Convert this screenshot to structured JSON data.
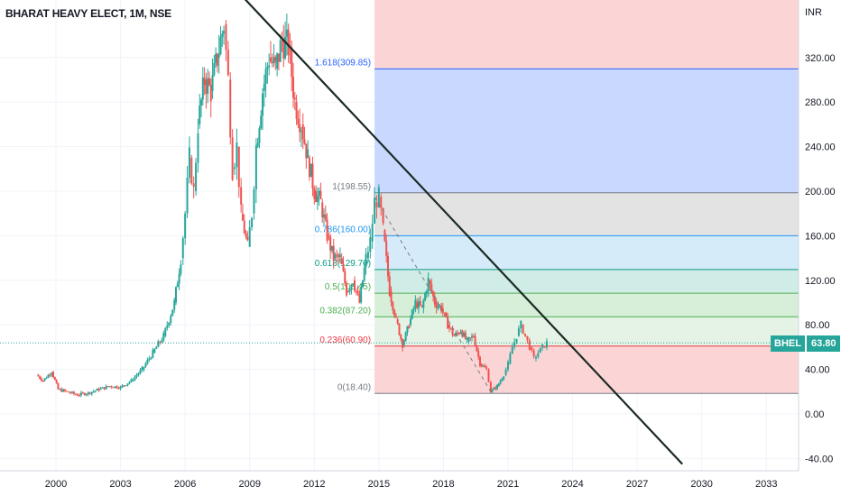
{
  "header": {
    "title": "BHARAT HEAVY ELECT, 1M, NSE",
    "unit": "INR"
  },
  "price_badge": {
    "symbol": "BHEL",
    "price": "63.80"
  },
  "colors": {
    "up": "#26a69a",
    "down": "#ef5350",
    "trendline": "#1b2a23",
    "current_price_line": "#26a69a"
  },
  "chart_data": {
    "type": "candlestick",
    "interval": "monthly",
    "x_ticks": [
      "2000",
      "2003",
      "2006",
      "2009",
      "2012",
      "2015",
      "2018",
      "2021",
      "2024",
      "2027",
      "2030",
      "2033"
    ],
    "y_ticks": [
      "-40.00",
      "0.00",
      "40.00",
      "80.00",
      "120.00",
      "160.00",
      "200.00",
      "240.00",
      "280.00",
      "320.00"
    ],
    "ylim": [
      -50,
      360
    ],
    "xlim": [
      1997.4,
      2034.5
    ],
    "current_price": 63.8,
    "series": [
      {
        "ohlc_path": [
          [
            1999.1,
            35
          ],
          [
            1999.4,
            30
          ],
          [
            1999.8,
            38
          ],
          [
            2000.1,
            22
          ],
          [
            2000.5,
            20
          ],
          [
            2001.0,
            17
          ],
          [
            2001.5,
            19
          ],
          [
            2002.0,
            22
          ],
          [
            2002.5,
            25
          ],
          [
            2003.0,
            24
          ],
          [
            2003.5,
            30
          ],
          [
            2004.0,
            40
          ],
          [
            2004.5,
            55
          ],
          [
            2005.0,
            70
          ],
          [
            2005.5,
            100
          ],
          [
            2005.8,
            140
          ],
          [
            2006.0,
            180
          ],
          [
            2006.2,
            230
          ],
          [
            2006.4,
            200
          ],
          [
            2006.6,
            260
          ],
          [
            2006.9,
            300
          ],
          [
            2007.2,
            290
          ],
          [
            2007.5,
            320
          ],
          [
            2007.8,
            350
          ],
          [
            2008.0,
            300
          ],
          [
            2008.2,
            220
          ],
          [
            2008.4,
            240
          ],
          [
            2008.6,
            180
          ],
          [
            2008.9,
            150
          ],
          [
            2009.1,
            180
          ],
          [
            2009.3,
            240
          ],
          [
            2009.6,
            290
          ],
          [
            2009.9,
            320
          ],
          [
            2010.2,
            310
          ],
          [
            2010.5,
            335
          ],
          [
            2010.8,
            330
          ],
          [
            2011.1,
            280
          ],
          [
            2011.4,
            260
          ],
          [
            2011.7,
            230
          ],
          [
            2012.0,
            200
          ],
          [
            2012.3,
            190
          ],
          [
            2012.6,
            160
          ],
          [
            2012.9,
            140
          ],
          [
            2013.2,
            140
          ],
          [
            2013.5,
            110
          ],
          [
            2013.8,
            120
          ],
          [
            2014.1,
            100
          ],
          [
            2014.4,
            140
          ],
          [
            2014.6,
            155
          ],
          [
            2014.8,
            190
          ],
          [
            2015.0,
            195
          ],
          [
            2015.2,
            165
          ],
          [
            2015.5,
            110
          ],
          [
            2015.8,
            85
          ],
          [
            2016.1,
            62
          ],
          [
            2016.4,
            80
          ],
          [
            2016.7,
            100
          ],
          [
            2017.0,
            95
          ],
          [
            2017.3,
            120
          ],
          [
            2017.6,
            100
          ],
          [
            2017.9,
            95
          ],
          [
            2018.2,
            80
          ],
          [
            2018.5,
            70
          ],
          [
            2018.8,
            75
          ],
          [
            2019.1,
            65
          ],
          [
            2019.4,
            70
          ],
          [
            2019.7,
            45
          ],
          [
            2020.0,
            40
          ],
          [
            2020.2,
            20
          ],
          [
            2020.5,
            25
          ],
          [
            2020.8,
            35
          ],
          [
            2021.0,
            45
          ],
          [
            2021.2,
            60
          ],
          [
            2021.4,
            70
          ],
          [
            2021.6,
            80
          ],
          [
            2021.8,
            70
          ],
          [
            2022.0,
            60
          ],
          [
            2022.2,
            50
          ],
          [
            2022.4,
            55
          ],
          [
            2022.6,
            60
          ],
          [
            2022.8,
            63.8
          ]
        ]
      }
    ],
    "trendline": {
      "from": [
        2003.3,
        485
      ],
      "to": [
        2029.1,
        -45
      ]
    },
    "dashed_line": {
      "from": [
        2014.8,
        195
      ],
      "to": [
        2020.2,
        20
      ]
    },
    "fibonacci": {
      "start_x": 2014.8,
      "levels": [
        {
          "label": "1.618(309.85)",
          "value": 309.85,
          "color": "#2962ff",
          "fill": "#c9d8ff"
        },
        {
          "label": "1(198.55)",
          "value": 198.55,
          "color": "#787b86",
          "fill": "#e3e3e3"
        },
        {
          "label": "0.786(160.00)",
          "value": 160.0,
          "color": "#2196f3",
          "fill": "#d6ebfa"
        },
        {
          "label": "0.618(129.70)",
          "value": 129.7,
          "color": "#089981",
          "fill": "#cfece6"
        },
        {
          "label": "0.5(108.45)",
          "value": 108.45,
          "color": "#4caf50",
          "fill": "#d7efd9"
        },
        {
          "label": "0.382(87.20)",
          "value": 87.2,
          "color": "#4caf50",
          "fill": "#e4f3e5"
        },
        {
          "label": "0.236(60.90)",
          "value": 60.9,
          "color": "#f23645",
          "fill": "#d9eee6"
        },
        {
          "label": "0(18.40)",
          "value": 18.4,
          "color": "#787b86",
          "fill": "#fbd5d5"
        }
      ],
      "top_fill": "#fbd5d5"
    }
  }
}
